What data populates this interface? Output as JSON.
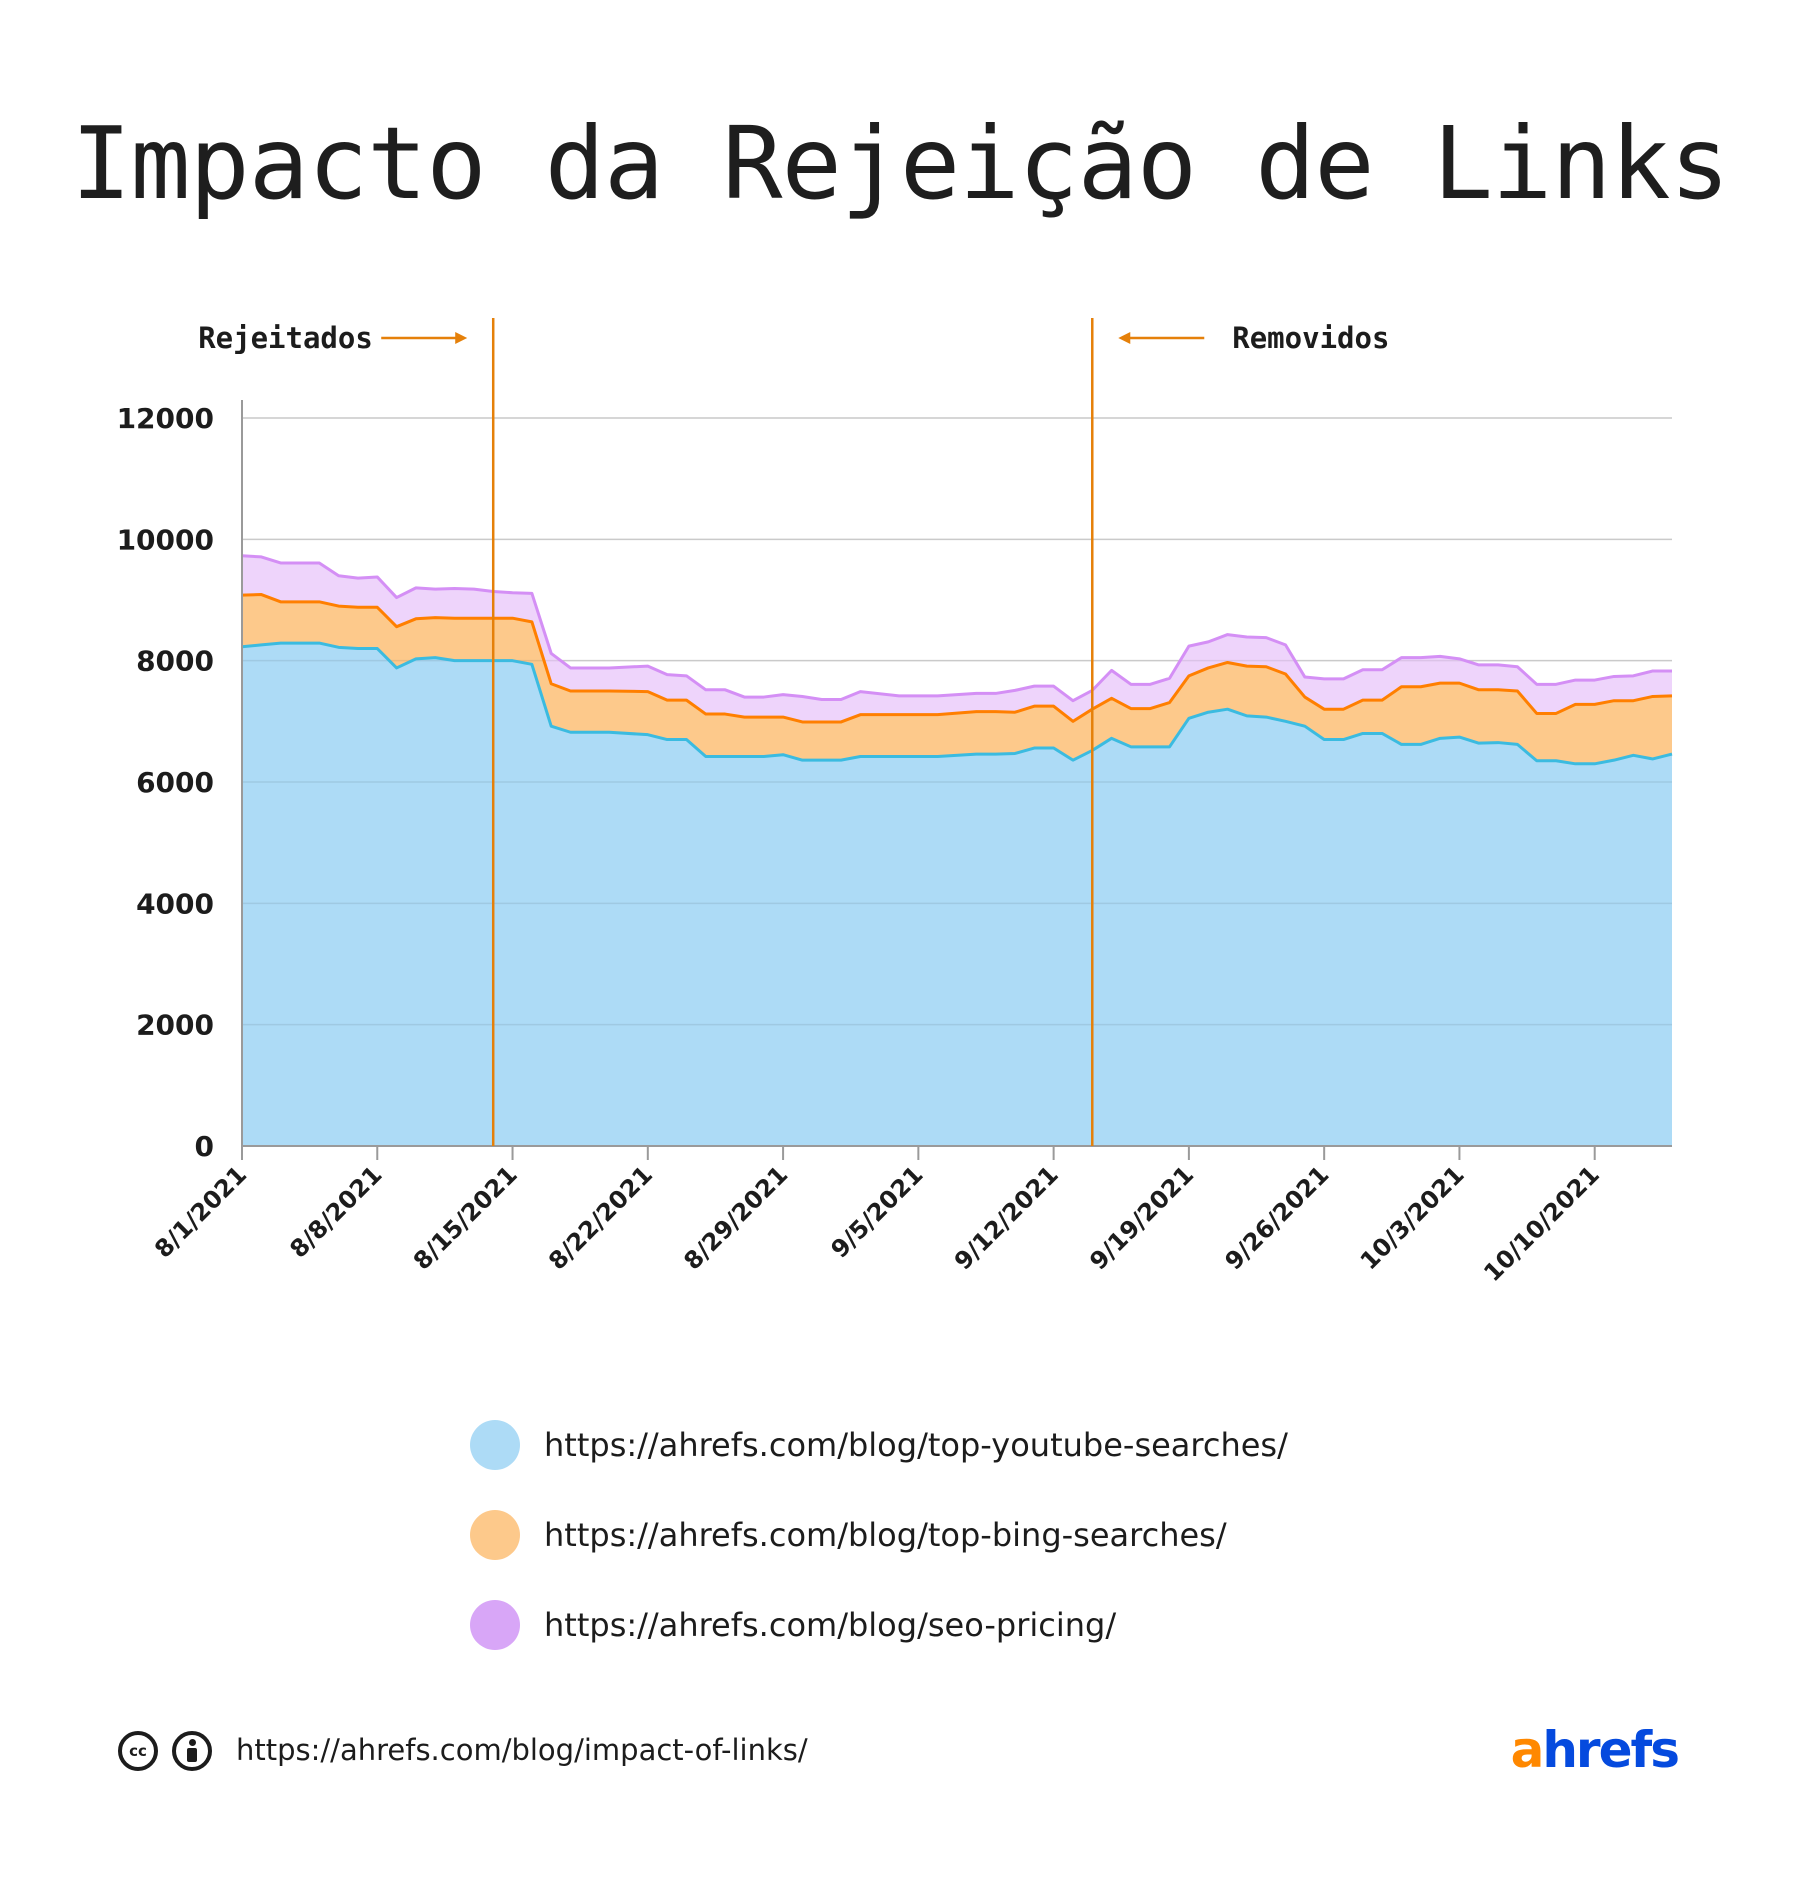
{
  "title": "Impacto da Rejeição de Links",
  "colors": {
    "youtube_fill": "#addbf6",
    "youtube_line": "#3bbbe0",
    "bing_fill": "#fdc98b",
    "bing_line": "#ff7f00",
    "pricing_fill": "#eed4fb",
    "pricing_line": "#d48ff5",
    "marker_line": "#e5800a",
    "grid": "#dcdcdc"
  },
  "annotations": [
    {
      "label": "Rejeitados",
      "x": "8/14/2021",
      "arrow": "right"
    },
    {
      "label": "Removidos",
      "x": "9/14/2021",
      "arrow": "left"
    }
  ],
  "footer": {
    "url": "https://ahrefs.com/blog/impact-of-links/",
    "brand_a": "a",
    "brand_rest": "hrefs",
    "cc_label": "cc",
    "icons": [
      "cc-icon",
      "attribution-icon"
    ]
  },
  "chart_data": {
    "type": "area",
    "stacked": true,
    "title": "Impacto da Rejeição de Links",
    "xlabel": "",
    "ylabel": "",
    "ylim": [
      0,
      12000
    ],
    "yticks": [
      0,
      2000,
      4000,
      6000,
      8000,
      10000,
      12000
    ],
    "x_start": "8/1/2021",
    "x_end": "10/14/2021",
    "xticks": [
      "8/1/2021",
      "8/8/2021",
      "8/15/2021",
      "8/22/2021",
      "8/29/2021",
      "9/5/2021",
      "9/12/2021",
      "9/19/2021",
      "9/26/2021",
      "10/3/2021",
      "10/10/2021"
    ],
    "grid": true,
    "legend_position": "bottom",
    "x": [
      "8/1/2021",
      "8/2/2021",
      "8/3/2021",
      "8/5/2021",
      "8/6/2021",
      "8/7/2021",
      "8/8/2021",
      "8/9/2021",
      "8/10/2021",
      "8/11/2021",
      "8/12/2021",
      "8/13/2021",
      "8/14/2021",
      "8/15/2021",
      "8/16/2021",
      "8/17/2021",
      "8/18/2021",
      "8/20/2021",
      "8/22/2021",
      "8/23/2021",
      "8/24/2021",
      "8/25/2021",
      "8/26/2021",
      "8/27/2021",
      "8/28/2021",
      "8/29/2021",
      "8/30/2021",
      "8/31/2021",
      "9/1/2021",
      "9/2/2021",
      "9/4/2021",
      "9/6/2021",
      "9/8/2021",
      "9/9/2021",
      "9/10/2021",
      "9/11/2021",
      "9/12/2021",
      "9/13/2021",
      "9/14/2021",
      "9/15/2021",
      "9/16/2021",
      "9/17/2021",
      "9/18/2021",
      "9/19/2021",
      "9/20/2021",
      "9/21/2021",
      "9/22/2021",
      "9/23/2021",
      "9/24/2021",
      "9/25/2021",
      "9/26/2021",
      "9/27/2021",
      "9/28/2021",
      "9/29/2021",
      "9/30/2021",
      "10/1/2021",
      "10/2/2021",
      "10/3/2021",
      "10/4/2021",
      "10/5/2021",
      "10/6/2021",
      "10/7/2021",
      "10/8/2021",
      "10/9/2021",
      "10/10/2021",
      "10/11/2021",
      "10/12/2021",
      "10/13/2021",
      "10/14/2021"
    ],
    "series": [
      {
        "name": "https://ahrefs.com/blog/top-youtube-searches/",
        "values": [
          8230,
          8260,
          8290,
          8290,
          8220,
          8200,
          8200,
          7880,
          8030,
          8050,
          8000,
          8000,
          8000,
          8000,
          7940,
          6920,
          6820,
          6820,
          6780,
          6700,
          6700,
          6420,
          6420,
          6420,
          6420,
          6450,
          6360,
          6360,
          6360,
          6420,
          6420,
          6420,
          6460,
          6460,
          6470,
          6560,
          6560,
          6360,
          6520,
          6720,
          6580,
          6580,
          6580,
          7050,
          7150,
          7200,
          7090,
          7070,
          7000,
          6920,
          6700,
          6700,
          6800,
          6800,
          6620,
          6620,
          6720,
          6740,
          6640,
          6650,
          6620,
          6350,
          6350,
          6300,
          6300,
          6360,
          6440,
          6380,
          6460
        ]
      },
      {
        "name": "https://ahrefs.com/blog/top-bing-searches/",
        "values": [
          850,
          830,
          680,
          680,
          680,
          680,
          680,
          680,
          660,
          660,
          700,
          700,
          700,
          700,
          700,
          700,
          680,
          680,
          710,
          650,
          650,
          700,
          700,
          650,
          650,
          620,
          630,
          630,
          630,
          690,
          690,
          690,
          700,
          700,
          680,
          690,
          690,
          640,
          680,
          660,
          630,
          630,
          730,
          700,
          730,
          770,
          820,
          830,
          780,
          480,
          500,
          500,
          550,
          550,
          950,
          950,
          910,
          890,
          880,
          870,
          880,
          780,
          780,
          980,
          980,
          980,
          900,
          1030,
          960
        ]
      },
      {
        "name": "https://ahrefs.com/blog/seo-pricing/",
        "values": [
          650,
          620,
          640,
          640,
          500,
          480,
          500,
          480,
          510,
          470,
          490,
          480,
          440,
          420,
          470,
          500,
          380,
          380,
          420,
          420,
          400,
          400,
          400,
          330,
          330,
          370,
          420,
          370,
          370,
          380,
          310,
          310,
          300,
          300,
          360,
          330,
          330,
          340,
          310,
          460,
          400,
          400,
          400,
          490,
          430,
          460,
          480,
          480,
          480,
          330,
          500,
          500,
          500,
          500,
          480,
          480,
          440,
          400,
          410,
          410,
          400,
          480,
          480,
          400,
          400,
          400,
          410,
          420,
          410
        ]
      }
    ]
  },
  "legend": [
    {
      "label": "https://ahrefs.com/blog/top-youtube-searches/",
      "color": "#addbf6"
    },
    {
      "label": "https://ahrefs.com/blog/top-bing-searches/",
      "color": "#fdc98b"
    },
    {
      "label": "https://ahrefs.com/blog/seo-pricing/",
      "color": "#d8a6f7"
    }
  ]
}
